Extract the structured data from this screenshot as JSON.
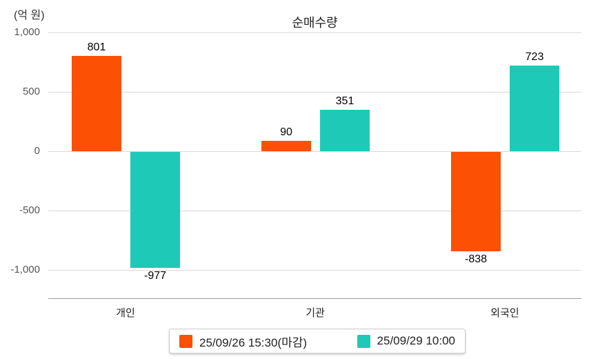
{
  "chart_data": {
    "type": "bar",
    "title": "순매수량",
    "unit_label": "(억 원)",
    "categories": [
      "개인",
      "기관",
      "외국인"
    ],
    "series": [
      {
        "name": "25/09/26 15:30(마감)",
        "color": "#fc5004",
        "values": [
          801,
          90,
          -838
        ]
      },
      {
        "name": "25/09/29 10:00",
        "color": "#1fc9b7",
        "values": [
          -977,
          351,
          723
        ]
      }
    ],
    "value_labels": [
      [
        "801",
        "90",
        "-838"
      ],
      [
        "-977",
        "351",
        "723"
      ]
    ],
    "yticks": [
      1000,
      500,
      0,
      -500,
      -1000
    ],
    "ytick_labels": [
      "1,000",
      "500",
      "0",
      "-500",
      "-1,000"
    ],
    "ylim": [
      -1000,
      1000
    ],
    "grid": true,
    "legend_position": "bottom"
  }
}
